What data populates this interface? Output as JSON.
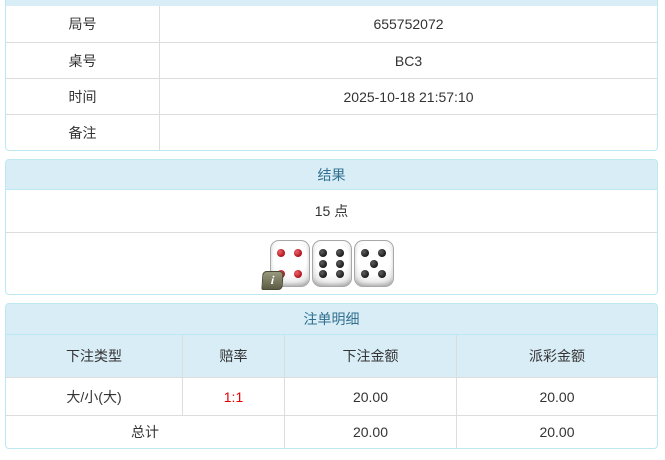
{
  "colors": {
    "heading_bg": "#d9edf7",
    "heading_text": "#31708f",
    "panel_border": "#bce8f1",
    "row_border": "#dddddd",
    "body_text": "#333333",
    "odds_text": "#e60000",
    "red_pip": "#b81c22",
    "black_pip": "#1a1a1a"
  },
  "info_table": {
    "rows": [
      {
        "label": "局号",
        "value": "655752072"
      },
      {
        "label": "桌号",
        "value": "BC3"
      },
      {
        "label": "时间",
        "value": "2025-10-18 21:57:10"
      },
      {
        "label": "备注",
        "value": ""
      }
    ]
  },
  "result_panel": {
    "title": "结果",
    "points": "15 点",
    "dice": [
      {
        "value": 4,
        "pip_color": "red"
      },
      {
        "value": 6,
        "pip_color": "black"
      },
      {
        "value": 5,
        "pip_color": "black"
      }
    ],
    "info_badge": "i"
  },
  "bets_panel": {
    "title": "注单明细",
    "columns": [
      "下注类型",
      "赔率",
      "下注金额",
      "派彩金额"
    ],
    "rows": [
      {
        "bet_type": "大/小(大)",
        "odds": "1:1",
        "bet_amount": "20.00",
        "payout_amount": "20.00"
      }
    ],
    "total_row": {
      "label": "总计",
      "bet_amount": "20.00",
      "payout_amount": "20.00"
    }
  }
}
